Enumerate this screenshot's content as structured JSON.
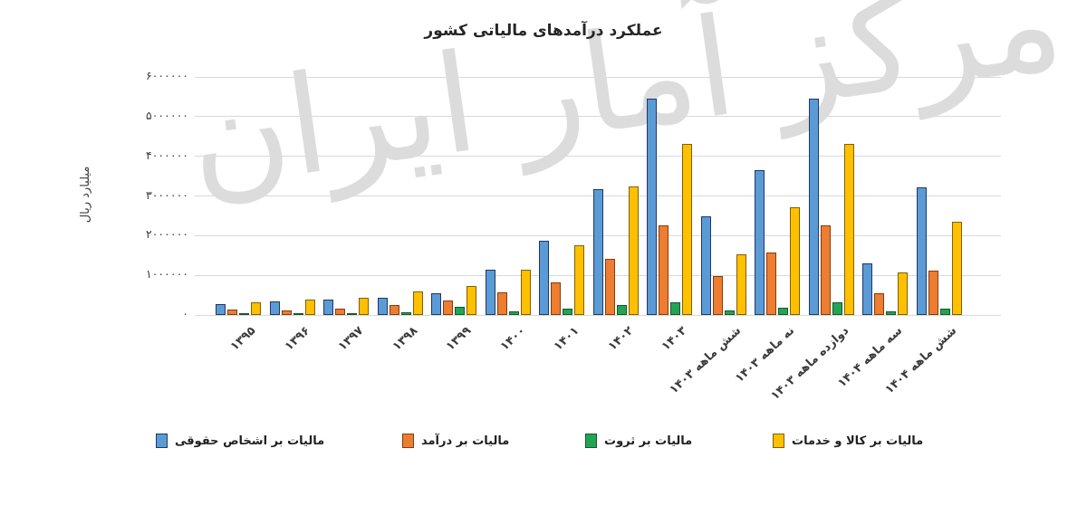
{
  "title": "عملکرد درآمدهای مالیاتی کشور",
  "watermark": "مرکز آمار ایران",
  "y_axis": {
    "title": "میلیارد ریال",
    "tick_labels_top_down": [
      "۶۰۰۰۰۰۰",
      "۵۰۰۰۰۰۰",
      "۴۰۰۰۰۰۰",
      "۳۰۰۰۰۰۰",
      "۲۰۰۰۰۰۰",
      "۱۰۰۰۰۰۰",
      "۰"
    ]
  },
  "chart_data": {
    "type": "bar",
    "title": "عملکرد درآمدهای مالیاتی کشور",
    "xlabel": "",
    "ylabel": "میلیارد ریال",
    "ylim": [
      0,
      6000000
    ],
    "y_step": 1000000,
    "grid": true,
    "legend_position": "bottom",
    "categories": [
      "۱۳۹۵",
      "۱۳۹۶",
      "۱۳۹۷",
      "۱۳۹۸",
      "۱۳۹۹",
      "۱۴۰۰",
      "۱۴۰۱",
      "۱۴۰۲",
      "۱۴۰۳",
      "شش ماهه ۱۴۰۳",
      "نه ماهه ۱۴۰۳",
      "دوازده ماهه ۱۴۰۳",
      "سه ماهه ۱۴۰۴",
      "شش ماهه ۱۴۰۴"
    ],
    "series": [
      {
        "name": "مالیات بر اشخاص حقوقی",
        "color": "#5B9BD5",
        "border": "#1f3864",
        "values": [
          280000,
          350000,
          390000,
          440000,
          540000,
          1140000,
          1870000,
          3170000,
          5450000,
          2480000,
          3640000,
          5450000,
          1300000,
          3210000
        ]
      },
      {
        "name": "مالیات بر درآمد",
        "color": "#ED7D31",
        "border": "#843c0c",
        "values": [
          130000,
          120000,
          150000,
          250000,
          370000,
          560000,
          830000,
          1420000,
          2250000,
          990000,
          1580000,
          2250000,
          540000,
          1120000
        ]
      },
      {
        "name": "مالیات بر ثروت",
        "color": "#23A455",
        "border": "#14572d",
        "values": [
          15000,
          20000,
          40000,
          70000,
          200000,
          90000,
          150000,
          250000,
          310000,
          110000,
          180000,
          310000,
          80000,
          150000
        ]
      },
      {
        "name": "مالیات بر کالا و خدمات",
        "color": "#FFC000",
        "border": "#7f6000",
        "values": [
          330000,
          380000,
          430000,
          600000,
          720000,
          1150000,
          1750000,
          3230000,
          4310000,
          1530000,
          2720000,
          4320000,
          1070000,
          2350000
        ]
      }
    ]
  }
}
